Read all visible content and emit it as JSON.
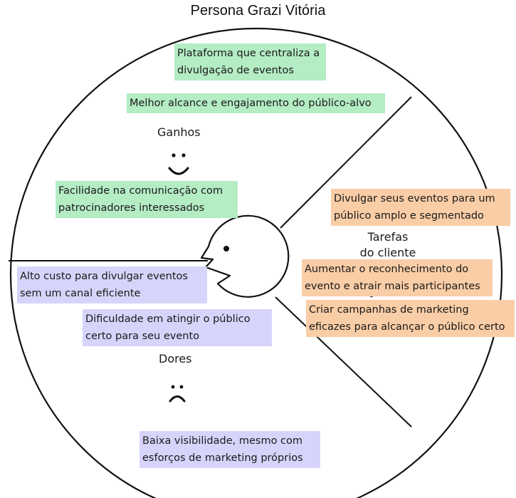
{
  "title": "Persona Grazi Vitória",
  "colors": {
    "gains": "#b4ecc4",
    "jobs": "#f9cda6",
    "pains": "#d7d4fb"
  },
  "sections": {
    "gains": {
      "label": "Ganhos",
      "icon": "smiley-face-icon",
      "notes": [
        "Plataforma que centraliza a divulgação de eventos",
        "Melhor alcance e engajamento do público-alvo",
        "Facilidade na comunicação com patrocinadores interessados"
      ]
    },
    "jobs": {
      "label_line1": "Tarefas",
      "label_line2": "do cliente",
      "icon": "checklist-icon",
      "notes": [
        "Divulgar seus eventos para um público amplo e segmentado",
        "Aumentar o reconhecimento do evento e atrair mais participantes",
        "Criar campanhas de marketing eficazes para alcançar o público certo"
      ]
    },
    "pains": {
      "label": "Dores",
      "icon": "sad-face-icon",
      "notes": [
        "Alto custo para divulgar eventos sem um canal eficiente",
        "Dificuldade em atingir o público certo para seu evento",
        "Baixa visibilidade, mesmo com esforços de marketing próprios"
      ]
    }
  }
}
